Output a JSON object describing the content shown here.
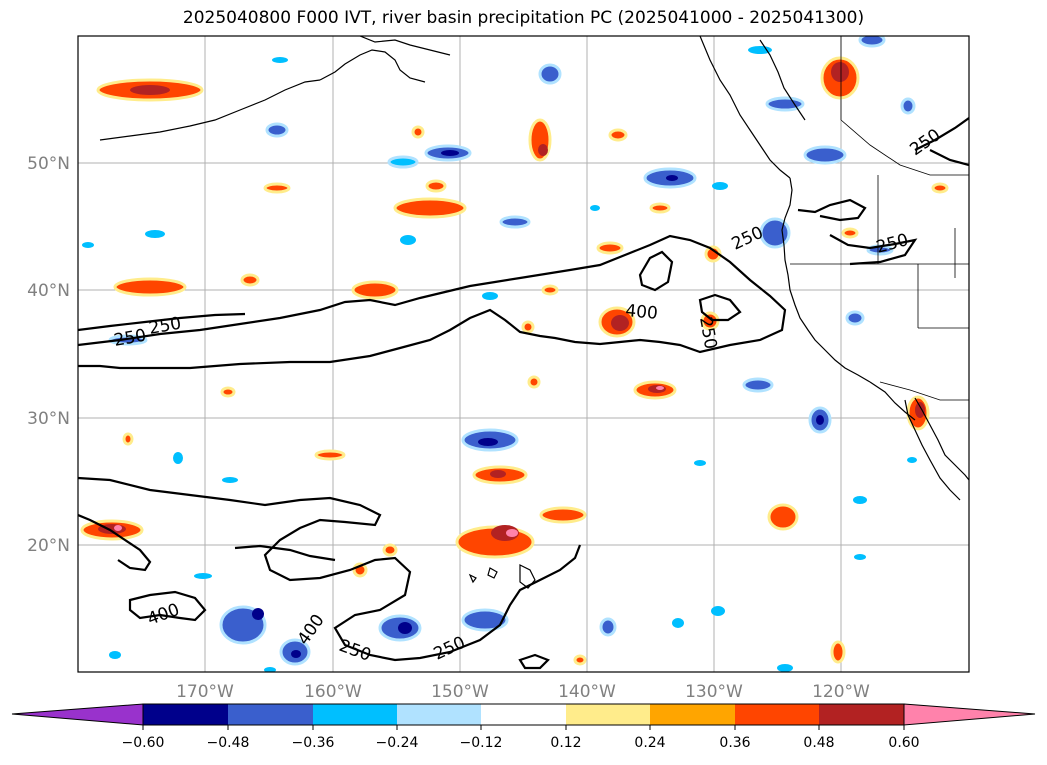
{
  "title": "2025040800 F000 IVT, river basin precipitation PC (2025041000 - 2025041300)",
  "map": {
    "lon_ticks": [
      "170°W",
      "160°W",
      "150°W",
      "140°W",
      "130°W",
      "120°W"
    ],
    "lat_ticks": [
      "50°N",
      "40°N",
      "30°N",
      "20°N"
    ],
    "contour_labels": [
      "250",
      "250",
      "400",
      "250",
      "250",
      "250",
      "400",
      "250",
      "250"
    ]
  },
  "colorbar": {
    "ticks": [
      "−0.60",
      "−0.48",
      "−0.36",
      "−0.24",
      "−0.12",
      "0.12",
      "0.24",
      "0.36",
      "0.48",
      "0.60"
    ],
    "colors": [
      "#9932cc",
      "#00008b",
      "#3a5fcd",
      "#00bfff",
      "#b0e2ff",
      "#ffffff",
      "#ffec8b",
      "#ffa500",
      "#ff4500",
      "#b22222",
      "#ff82ab"
    ]
  }
}
